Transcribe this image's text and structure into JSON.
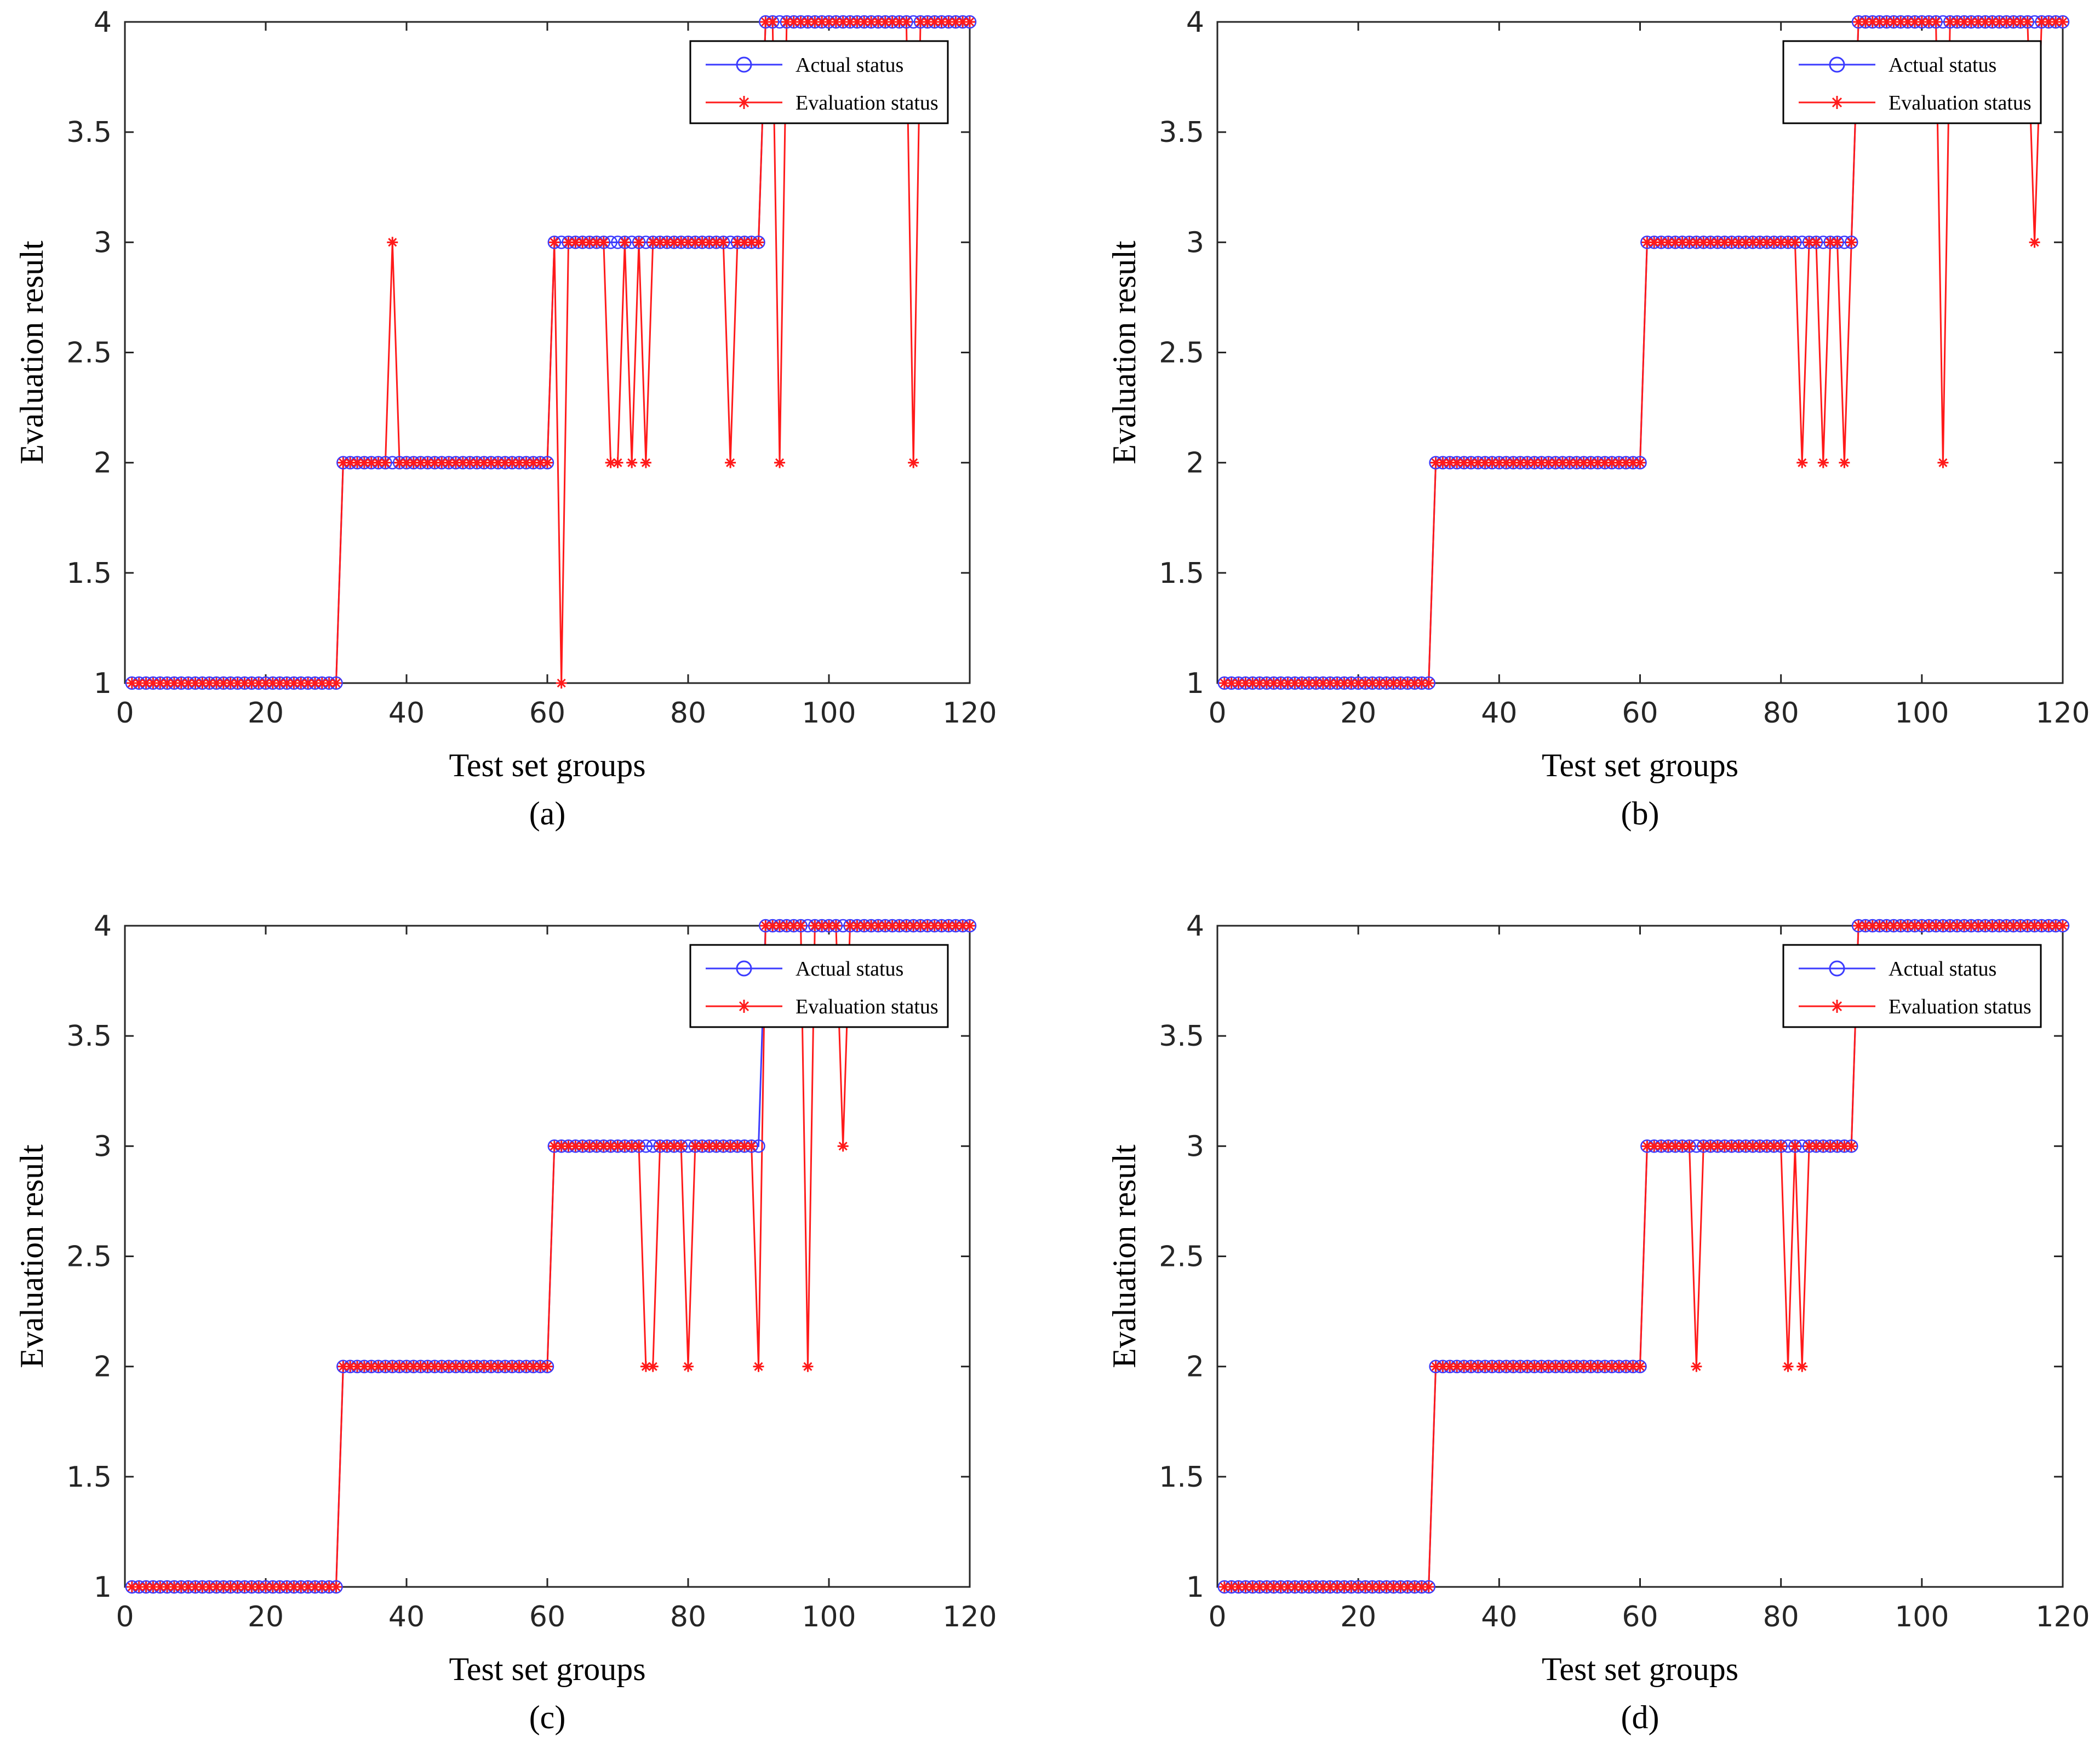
{
  "chart_data": [
    {
      "type": "line",
      "panel": "(a)",
      "xlabel": "Test set groups",
      "ylabel": "Evaluation result",
      "xlim": [
        0,
        120
      ],
      "ylim": [
        1,
        4
      ],
      "xticks": [
        "0",
        "20",
        "40",
        "60",
        "80",
        "100",
        "120"
      ],
      "yticks": [
        "1",
        "1.5",
        "2",
        "2.5",
        "3",
        "3.5",
        "4"
      ],
      "legend": {
        "position": "top-right",
        "entries": [
          "Actual status",
          "Evaluation status"
        ]
      },
      "series": [
        {
          "name": "Actual status",
          "values": [
            1,
            1,
            1,
            1,
            1,
            1,
            1,
            1,
            1,
            1,
            1,
            1,
            1,
            1,
            1,
            1,
            1,
            1,
            1,
            1,
            1,
            1,
            1,
            1,
            1,
            1,
            1,
            1,
            1,
            1,
            2,
            2,
            2,
            2,
            2,
            2,
            2,
            2,
            2,
            2,
            2,
            2,
            2,
            2,
            2,
            2,
            2,
            2,
            2,
            2,
            2,
            2,
            2,
            2,
            2,
            2,
            2,
            2,
            2,
            2,
            3,
            3,
            3,
            3,
            3,
            3,
            3,
            3,
            3,
            3,
            3,
            3,
            3,
            3,
            3,
            3,
            3,
            3,
            3,
            3,
            3,
            3,
            3,
            3,
            3,
            3,
            3,
            3,
            3,
            3,
            4,
            4,
            4,
            4,
            4,
            4,
            4,
            4,
            4,
            4,
            4,
            4,
            4,
            4,
            4,
            4,
            4,
            4,
            4,
            4,
            4,
            4,
            4,
            4,
            4,
            4,
            4,
            4,
            4,
            4
          ]
        },
        {
          "name": "Evaluation status",
          "values": [
            1,
            1,
            1,
            1,
            1,
            1,
            1,
            1,
            1,
            1,
            1,
            1,
            1,
            1,
            1,
            1,
            1,
            1,
            1,
            1,
            1,
            1,
            1,
            1,
            1,
            1,
            1,
            1,
            1,
            1,
            2,
            2,
            2,
            2,
            2,
            2,
            2,
            3,
            2,
            2,
            2,
            2,
            2,
            2,
            2,
            2,
            2,
            2,
            2,
            2,
            2,
            2,
            2,
            2,
            2,
            2,
            2,
            2,
            2,
            2,
            3,
            1,
            3,
            3,
            3,
            3,
            3,
            3,
            2,
            2,
            3,
            2,
            3,
            2,
            3,
            3,
            3,
            3,
            3,
            3,
            3,
            3,
            3,
            3,
            3,
            2,
            3,
            3,
            3,
            3,
            4,
            4,
            2,
            4,
            4,
            4,
            4,
            4,
            4,
            4,
            4,
            4,
            4,
            4,
            4,
            4,
            4,
            4,
            4,
            4,
            4,
            2,
            4,
            4,
            4,
            4,
            4,
            4,
            4,
            4
          ]
        }
      ]
    },
    {
      "type": "line",
      "panel": "(b)",
      "xlabel": "Test set groups",
      "ylabel": "Evaluation result",
      "xlim": [
        0,
        120
      ],
      "ylim": [
        1,
        4
      ],
      "xticks": [
        "0",
        "20",
        "40",
        "60",
        "80",
        "100",
        "120"
      ],
      "yticks": [
        "1",
        "1.5",
        "2",
        "2.5",
        "3",
        "3.5",
        "4"
      ],
      "legend": {
        "position": "top-right",
        "entries": [
          "Actual status",
          "Evaluation status"
        ]
      },
      "series": [
        {
          "name": "Actual status",
          "values": [
            1,
            1,
            1,
            1,
            1,
            1,
            1,
            1,
            1,
            1,
            1,
            1,
            1,
            1,
            1,
            1,
            1,
            1,
            1,
            1,
            1,
            1,
            1,
            1,
            1,
            1,
            1,
            1,
            1,
            1,
            2,
            2,
            2,
            2,
            2,
            2,
            2,
            2,
            2,
            2,
            2,
            2,
            2,
            2,
            2,
            2,
            2,
            2,
            2,
            2,
            2,
            2,
            2,
            2,
            2,
            2,
            2,
            2,
            2,
            2,
            3,
            3,
            3,
            3,
            3,
            3,
            3,
            3,
            3,
            3,
            3,
            3,
            3,
            3,
            3,
            3,
            3,
            3,
            3,
            3,
            3,
            3,
            3,
            3,
            3,
            3,
            3,
            3,
            3,
            3,
            4,
            4,
            4,
            4,
            4,
            4,
            4,
            4,
            4,
            4,
            4,
            4,
            4,
            4,
            4,
            4,
            4,
            4,
            4,
            4,
            4,
            4,
            4,
            4,
            4,
            4,
            4,
            4,
            4,
            4
          ]
        },
        {
          "name": "Evaluation status",
          "values": [
            1,
            1,
            1,
            1,
            1,
            1,
            1,
            1,
            1,
            1,
            1,
            1,
            1,
            1,
            1,
            1,
            1,
            1,
            1,
            1,
            1,
            1,
            1,
            1,
            1,
            1,
            1,
            1,
            1,
            1,
            2,
            2,
            2,
            2,
            2,
            2,
            2,
            2,
            2,
            2,
            2,
            2,
            2,
            2,
            2,
            2,
            2,
            2,
            2,
            2,
            2,
            2,
            2,
            2,
            2,
            2,
            2,
            2,
            2,
            2,
            3,
            3,
            3,
            3,
            3,
            3,
            3,
            3,
            3,
            3,
            3,
            3,
            3,
            3,
            3,
            3,
            3,
            3,
            3,
            3,
            3,
            3,
            2,
            3,
            3,
            2,
            3,
            3,
            2,
            3,
            4,
            4,
            4,
            4,
            4,
            4,
            4,
            4,
            4,
            4,
            4,
            4,
            2,
            4,
            4,
            4,
            4,
            4,
            4,
            4,
            4,
            4,
            4,
            4,
            4,
            3,
            4,
            4,
            4,
            4
          ]
        }
      ]
    },
    {
      "type": "line",
      "panel": "(c)",
      "xlabel": "Test set groups",
      "ylabel": "Evaluation result",
      "xlim": [
        0,
        120
      ],
      "ylim": [
        1,
        4
      ],
      "xticks": [
        "0",
        "20",
        "40",
        "60",
        "80",
        "100",
        "120"
      ],
      "yticks": [
        "1",
        "1.5",
        "2",
        "2.5",
        "3",
        "3.5",
        "4"
      ],
      "legend": {
        "position": "top-right",
        "entries": [
          "Actual status",
          "Evaluation status"
        ]
      },
      "series": [
        {
          "name": "Actual status",
          "values": [
            1,
            1,
            1,
            1,
            1,
            1,
            1,
            1,
            1,
            1,
            1,
            1,
            1,
            1,
            1,
            1,
            1,
            1,
            1,
            1,
            1,
            1,
            1,
            1,
            1,
            1,
            1,
            1,
            1,
            1,
            2,
            2,
            2,
            2,
            2,
            2,
            2,
            2,
            2,
            2,
            2,
            2,
            2,
            2,
            2,
            2,
            2,
            2,
            2,
            2,
            2,
            2,
            2,
            2,
            2,
            2,
            2,
            2,
            2,
            2,
            3,
            3,
            3,
            3,
            3,
            3,
            3,
            3,
            3,
            3,
            3,
            3,
            3,
            3,
            3,
            3,
            3,
            3,
            3,
            3,
            3,
            3,
            3,
            3,
            3,
            3,
            3,
            3,
            3,
            3,
            4,
            4,
            4,
            4,
            4,
            4,
            4,
            4,
            4,
            4,
            4,
            4,
            4,
            4,
            4,
            4,
            4,
            4,
            4,
            4,
            4,
            4,
            4,
            4,
            4,
            4,
            4,
            4,
            4,
            4
          ]
        },
        {
          "name": "Evaluation status",
          "values": [
            1,
            1,
            1,
            1,
            1,
            1,
            1,
            1,
            1,
            1,
            1,
            1,
            1,
            1,
            1,
            1,
            1,
            1,
            1,
            1,
            1,
            1,
            1,
            1,
            1,
            1,
            1,
            1,
            1,
            1,
            2,
            2,
            2,
            2,
            2,
            2,
            2,
            2,
            2,
            2,
            2,
            2,
            2,
            2,
            2,
            2,
            2,
            2,
            2,
            2,
            2,
            2,
            2,
            2,
            2,
            2,
            2,
            2,
            2,
            2,
            3,
            3,
            3,
            3,
            3,
            3,
            3,
            3,
            3,
            3,
            3,
            3,
            3,
            2,
            2,
            3,
            3,
            3,
            3,
            2,
            3,
            3,
            3,
            3,
            3,
            3,
            3,
            3,
            3,
            2,
            4,
            4,
            4,
            4,
            4,
            4,
            2,
            4,
            4,
            4,
            4,
            3,
            4,
            4,
            4,
            4,
            4,
            4,
            4,
            4,
            4,
            4,
            4,
            4,
            4,
            4,
            4,
            4,
            4,
            4
          ]
        }
      ]
    },
    {
      "type": "line",
      "panel": "(d)",
      "xlabel": "Test set groups",
      "ylabel": "Evaluation result",
      "xlim": [
        0,
        120
      ],
      "ylim": [
        1,
        4
      ],
      "xticks": [
        "0",
        "20",
        "40",
        "60",
        "80",
        "100",
        "120"
      ],
      "yticks": [
        "1",
        "1.5",
        "2",
        "2.5",
        "3",
        "3.5",
        "4"
      ],
      "legend": {
        "position": "top-right",
        "entries": [
          "Actual status",
          "Evaluation status"
        ]
      },
      "series": [
        {
          "name": "Actual status",
          "values": [
            1,
            1,
            1,
            1,
            1,
            1,
            1,
            1,
            1,
            1,
            1,
            1,
            1,
            1,
            1,
            1,
            1,
            1,
            1,
            1,
            1,
            1,
            1,
            1,
            1,
            1,
            1,
            1,
            1,
            1,
            2,
            2,
            2,
            2,
            2,
            2,
            2,
            2,
            2,
            2,
            2,
            2,
            2,
            2,
            2,
            2,
            2,
            2,
            2,
            2,
            2,
            2,
            2,
            2,
            2,
            2,
            2,
            2,
            2,
            2,
            3,
            3,
            3,
            3,
            3,
            3,
            3,
            3,
            3,
            3,
            3,
            3,
            3,
            3,
            3,
            3,
            3,
            3,
            3,
            3,
            3,
            3,
            3,
            3,
            3,
            3,
            3,
            3,
            3,
            3,
            4,
            4,
            4,
            4,
            4,
            4,
            4,
            4,
            4,
            4,
            4,
            4,
            4,
            4,
            4,
            4,
            4,
            4,
            4,
            4,
            4,
            4,
            4,
            4,
            4,
            4,
            4,
            4,
            4,
            4
          ]
        },
        {
          "name": "Evaluation status",
          "values": [
            1,
            1,
            1,
            1,
            1,
            1,
            1,
            1,
            1,
            1,
            1,
            1,
            1,
            1,
            1,
            1,
            1,
            1,
            1,
            1,
            1,
            1,
            1,
            1,
            1,
            1,
            1,
            1,
            1,
            1,
            2,
            2,
            2,
            2,
            2,
            2,
            2,
            2,
            2,
            2,
            2,
            2,
            2,
            2,
            2,
            2,
            2,
            2,
            2,
            2,
            2,
            2,
            2,
            2,
            2,
            2,
            2,
            2,
            2,
            2,
            3,
            3,
            3,
            3,
            3,
            3,
            3,
            2,
            3,
            3,
            3,
            3,
            3,
            3,
            3,
            3,
            3,
            3,
            3,
            3,
            2,
            3,
            2,
            3,
            3,
            3,
            3,
            3,
            3,
            3,
            4,
            4,
            4,
            4,
            4,
            4,
            4,
            4,
            4,
            4,
            4,
            4,
            4,
            4,
            4,
            4,
            4,
            4,
            4,
            4,
            4,
            4,
            4,
            4,
            4,
            4,
            4,
            4,
            4,
            4
          ]
        }
      ]
    }
  ]
}
